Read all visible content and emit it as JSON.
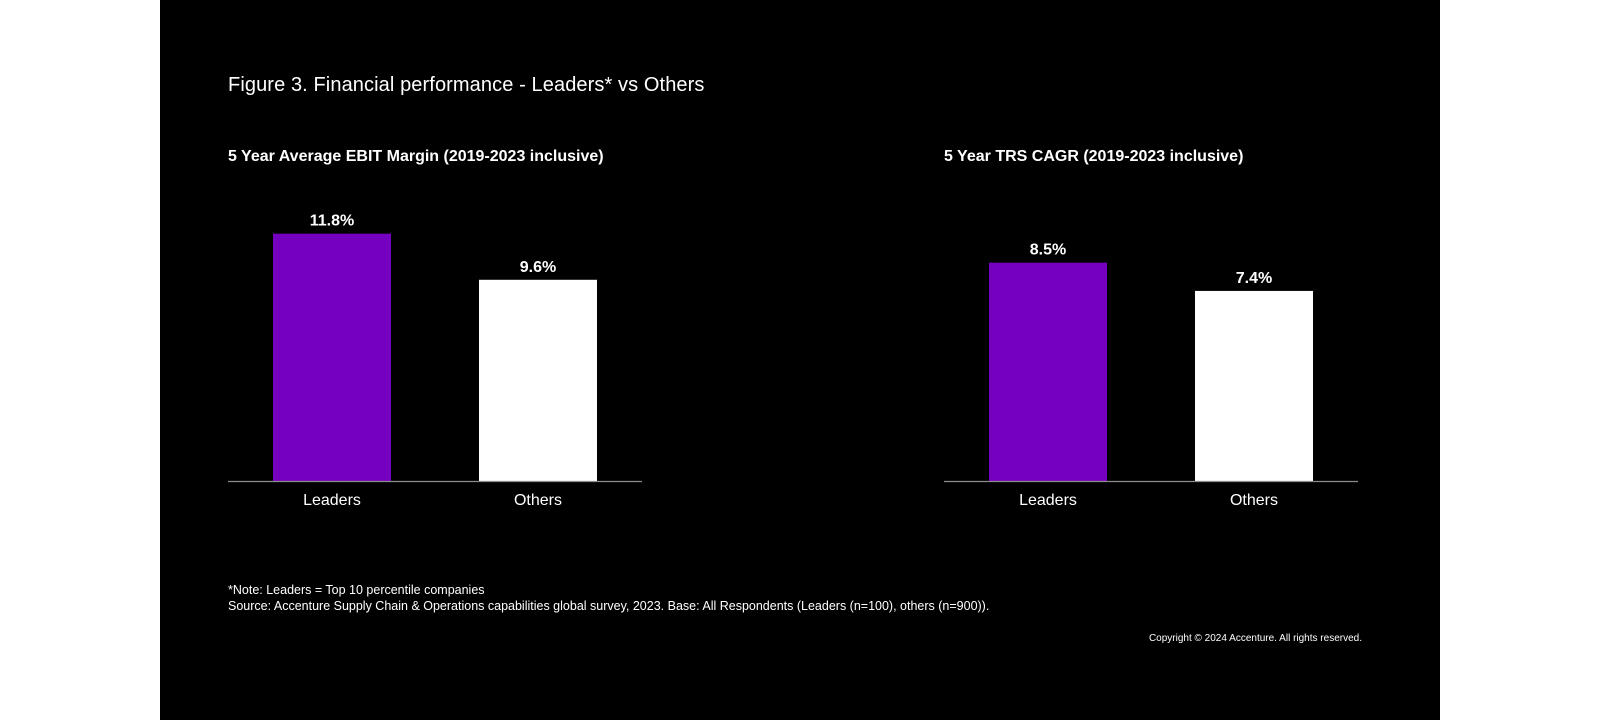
{
  "figure_title": "Figure 3. Financial performance - Leaders* vs Others",
  "colors": {
    "background": "#000000",
    "leaders_bar": "#7500c0",
    "others_bar": "#ffffff",
    "text": "#ffffff",
    "baseline": "#8c8c8c"
  },
  "chart_data": [
    {
      "type": "bar",
      "title": "5 Year Average EBIT Margin (2019-2023 inclusive)",
      "categories": [
        "Leaders",
        "Others"
      ],
      "values": [
        11.8,
        9.6
      ],
      "value_labels": [
        "11.8%",
        "9.6%"
      ],
      "bar_colors": [
        "#7500c0",
        "#ffffff"
      ],
      "ylim": [
        0,
        12.5
      ],
      "grid": false,
      "xlabel": "",
      "ylabel": ""
    },
    {
      "type": "bar",
      "title": "5 Year TRS CAGR (2019-2023 inclusive)",
      "categories": [
        "Leaders",
        "Others"
      ],
      "values": [
        8.5,
        7.4
      ],
      "value_labels": [
        "8.5%",
        "7.4%"
      ],
      "bar_colors": [
        "#7500c0",
        "#ffffff"
      ],
      "ylim": [
        0,
        10.2
      ],
      "grid": false,
      "xlabel": "",
      "ylabel": ""
    }
  ],
  "footnote": {
    "note": "*Note: Leaders = Top 10 percentile companies",
    "source": "Source: Accenture Supply Chain & Operations capabilities global survey, 2023. Base: All Respondents (Leaders (n=100), others (n=900))."
  },
  "copyright": "Copyright © 2024 Accenture. All rights reserved."
}
